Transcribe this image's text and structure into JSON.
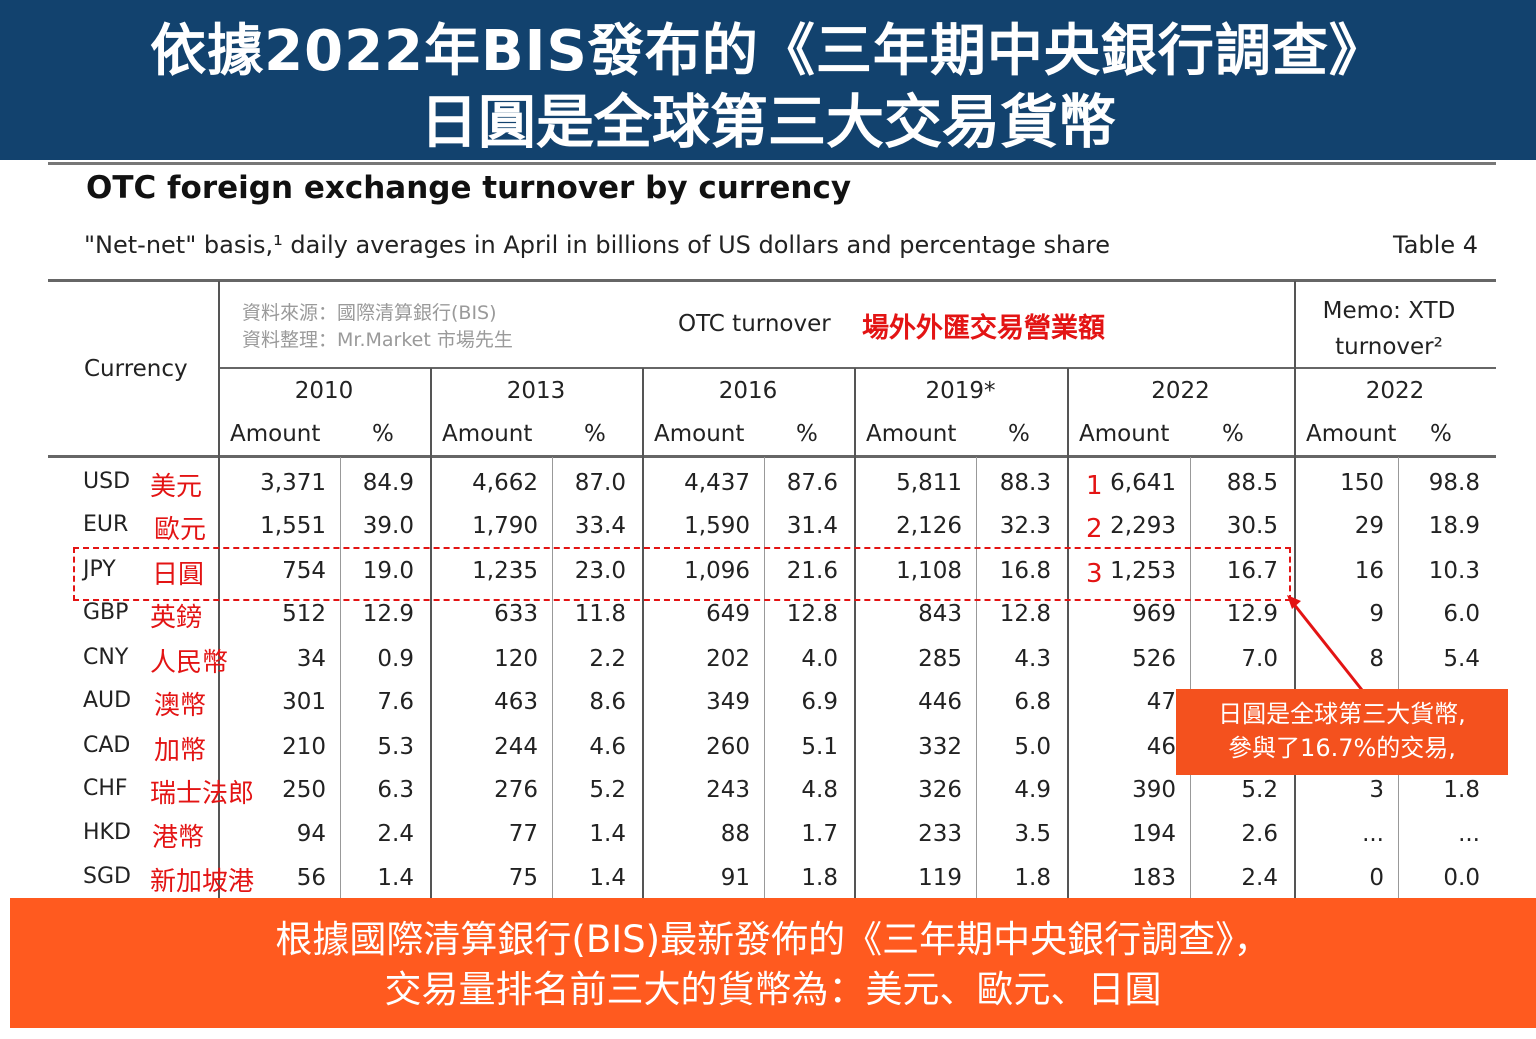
{
  "banner": {
    "line1": "依據2022年BIS發布的《三年期中央銀行調查》",
    "line2": "日圓是全球第三大交易貨幣"
  },
  "table": {
    "title": "OTC foreign exchange turnover by currency",
    "subtitle": "\"Net-net\" basis,¹ daily averages in April in billions of US dollars and percentage share",
    "table_number": "Table 4",
    "currency_header": "Currency",
    "source_line1": "資料來源：國際清算銀行(BIS)",
    "source_line2": "資料整理：Mr.Market 市場先生",
    "otc_label": "OTC turnover",
    "otc_label_zh": "場外外匯交易營業額",
    "memo_line1": "Memo: XTD",
    "memo_line2": "turnover²",
    "years": [
      "2010",
      "2013",
      "2016",
      "2019*",
      "2022",
      "2022"
    ],
    "amount_label": "Amount",
    "pct_label": "%",
    "rows": [
      {
        "code": "USD",
        "zh": "美元",
        "rank": "1",
        "vals": [
          "3,371",
          "84.9",
          "4,662",
          "87.0",
          "4,437",
          "87.6",
          "5,811",
          "88.3",
          "6,641",
          "88.5",
          "150",
          "98.8"
        ]
      },
      {
        "code": "EUR",
        "zh": "歐元",
        "rank": "2",
        "vals": [
          "1,551",
          "39.0",
          "1,790",
          "33.4",
          "1,590",
          "31.4",
          "2,126",
          "32.3",
          "2,293",
          "30.5",
          "29",
          "18.9"
        ]
      },
      {
        "code": "JPY",
        "zh": "日圓",
        "rank": "3",
        "vals": [
          "754",
          "19.0",
          "1,235",
          "23.0",
          "1,096",
          "21.6",
          "1,108",
          "16.8",
          "1,253",
          "16.7",
          "16",
          "10.3"
        ]
      },
      {
        "code": "GBP",
        "zh": "英鎊",
        "rank": "",
        "vals": [
          "512",
          "12.9",
          "633",
          "11.8",
          "649",
          "12.8",
          "843",
          "12.8",
          "969",
          "12.9",
          "9",
          "6.0"
        ]
      },
      {
        "code": "CNY",
        "zh": "人民幣",
        "rank": "",
        "vals": [
          "34",
          "0.9",
          "120",
          "2.2",
          "202",
          "4.0",
          "285",
          "4.3",
          "526",
          "7.0",
          "8",
          "5.4"
        ]
      },
      {
        "code": "AUD",
        "zh": "澳幣",
        "rank": "",
        "vals": [
          "301",
          "7.6",
          "463",
          "8.6",
          "349",
          "6.9",
          "446",
          "6.8",
          "47",
          "",
          "",
          ""
        ]
      },
      {
        "code": "CAD",
        "zh": "加幣",
        "rank": "",
        "vals": [
          "210",
          "5.3",
          "244",
          "4.6",
          "260",
          "5.1",
          "332",
          "5.0",
          "46",
          "",
          "",
          ""
        ]
      },
      {
        "code": "CHF",
        "zh": "瑞士法郎",
        "rank": "",
        "vals": [
          "250",
          "6.3",
          "276",
          "5.2",
          "243",
          "4.8",
          "326",
          "4.9",
          "390",
          "5.2",
          "3",
          "1.8"
        ]
      },
      {
        "code": "HKD",
        "zh": "港幣",
        "rank": "",
        "vals": [
          "94",
          "2.4",
          "77",
          "1.4",
          "88",
          "1.7",
          "233",
          "3.5",
          "194",
          "2.6",
          "...",
          "..."
        ]
      },
      {
        "code": "SGD",
        "zh": "新加坡港",
        "rank": "",
        "vals": [
          "56",
          "1.4",
          "75",
          "1.4",
          "91",
          "1.8",
          "119",
          "1.8",
          "183",
          "2.4",
          "0",
          "0.0"
        ]
      }
    ]
  },
  "callout": {
    "line1": "日圓是全球第三大貨幣,",
    "line2": "參與了16.7%的交易,"
  },
  "footer": {
    "line1": "根據國際清算銀行(BIS)最新發佈的《三年期中央銀行調查》，",
    "line2": "交易量排名前三大的貨幣為：美元、歐元、日圓"
  },
  "colors": {
    "banner": "#12426e",
    "accent_red": "#e31414",
    "callout": "#f4511e",
    "footer": "#ff5a1f"
  }
}
